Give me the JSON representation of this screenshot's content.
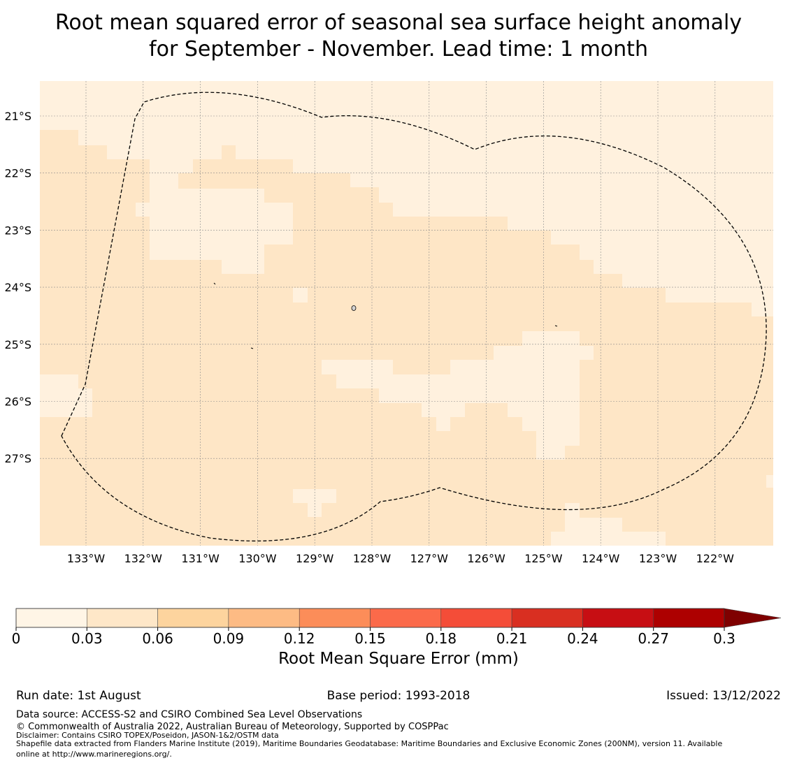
{
  "title": {
    "line1": "Root mean squared error of seasonal sea surface height anomaly",
    "line2": "for September - November. Lead time: 1 month"
  },
  "map": {
    "lat_labels": [
      "21°S",
      "22°S",
      "23°S",
      "24°S",
      "25°S",
      "26°S",
      "27°S"
    ],
    "lon_labels": [
      "133°W",
      "132°W",
      "131°W",
      "130°W",
      "129°W",
      "128°W",
      "127°W",
      "126°W",
      "125°W",
      "124°W",
      "123°W",
      "122°W"
    ],
    "colors": {
      "low": "#fff1de",
      "mid": "#fee6c6",
      "boundary": "#000000",
      "grid": "#8a8a8a"
    }
  },
  "colorbar": {
    "ticks": [
      "0",
      "0.03",
      "0.06",
      "0.09",
      "0.12",
      "0.15",
      "0.18",
      "0.21",
      "0.24",
      "0.27",
      "0.3"
    ],
    "colors": [
      "#fff5e6",
      "#fee7c8",
      "#fdd49e",
      "#fdbb84",
      "#fc8d59",
      "#fb6a4a",
      "#f44d38",
      "#d92f21",
      "#c70e13",
      "#ad0000"
    ],
    "extend_color": "#7f0000",
    "label": "Root Mean Square Error (mm)"
  },
  "footer": {
    "run_date": "Run date: 1st August",
    "base_period": "Base period: 1993-2018",
    "issued": "Issued: 13/12/2022",
    "data_source": "Data source: ACCESS-S2 and CSIRO Combined Sea Level Observations",
    "copyright": "© Commonwealth of Australia 2022, Australian Bureau of Meteorology, Supported by COSPPac",
    "disclaimer": "Disclaimer: Contains CSIRO TOPEX/Poseidon, JASON-1&2/OSTM data",
    "shapefile_line1": "Shapefile data extracted from Flanders Marine Institute (2019), Maritime Boundaries Geodatabase: Maritime Boundaries and Exclusive Economic Zones (200NM), version 11. Available",
    "shapefile_line2": "online at http://www.marineregions.org/."
  }
}
